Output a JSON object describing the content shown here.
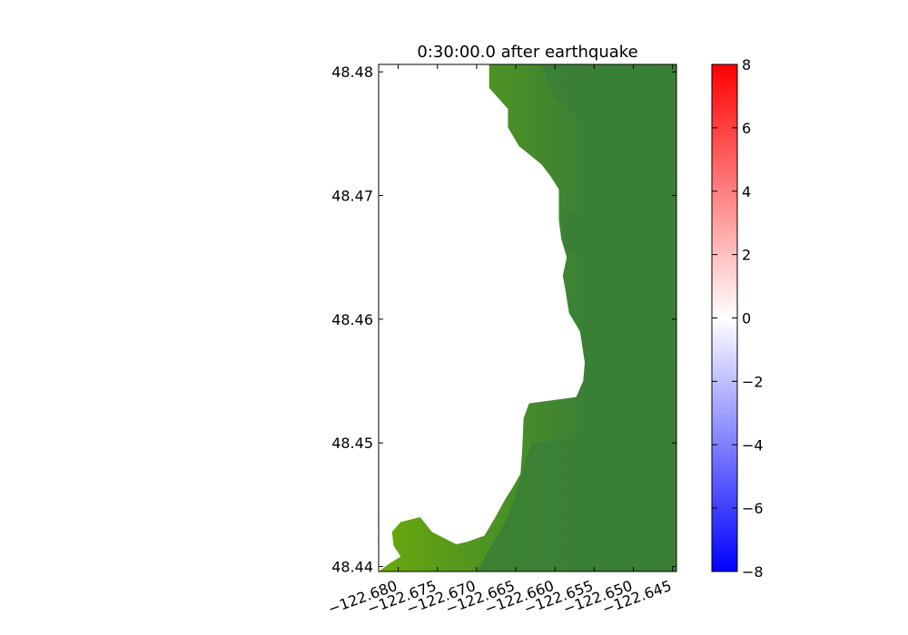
{
  "chart_data": {
    "type": "heatmap",
    "title": "0:30:00.0 after earthquake",
    "xlabel": "",
    "ylabel": "",
    "xlim": [
      -122.6825,
      -122.6445
    ],
    "ylim": [
      48.4396,
      48.4806
    ],
    "x_ticks": [
      -122.68,
      -122.675,
      -122.67,
      -122.665,
      -122.66,
      -122.655,
      -122.65,
      -122.645
    ],
    "x_tick_labels": [
      "−122.680",
      "−122.675",
      "−122.670",
      "−122.665",
      "−122.660",
      "−122.655",
      "−122.650",
      "−122.645"
    ],
    "y_ticks": [
      48.44,
      48.45,
      48.46,
      48.47,
      48.48
    ],
    "y_tick_labels": [
      "48.44",
      "48.45",
      "48.46",
      "48.47",
      "48.48"
    ],
    "land_color": "#6aa80a",
    "deep_water_color": "#3a7f36",
    "land_lon_at_lat": [
      {
        "lat": 48.4806,
        "lon": -122.6684
      },
      {
        "lat": 48.4787,
        "lon": -122.6684
      },
      {
        "lat": 48.477,
        "lon": -122.666
      },
      {
        "lat": 48.4755,
        "lon": -122.666
      },
      {
        "lat": 48.474,
        "lon": -122.6646
      },
      {
        "lat": 48.4725,
        "lon": -122.6617
      },
      {
        "lat": 48.4715,
        "lon": -122.6605
      },
      {
        "lat": 48.4705,
        "lon": -122.6595
      },
      {
        "lat": 48.468,
        "lon": -122.6595
      },
      {
        "lat": 48.4665,
        "lon": -122.6592
      },
      {
        "lat": 48.465,
        "lon": -122.6585
      },
      {
        "lat": 48.4635,
        "lon": -122.659
      },
      {
        "lat": 48.4625,
        "lon": -122.6587
      },
      {
        "lat": 48.4605,
        "lon": -122.6582
      },
      {
        "lat": 48.459,
        "lon": -122.6568
      },
      {
        "lat": 48.4565,
        "lon": -122.6562
      },
      {
        "lat": 48.455,
        "lon": -122.6564
      },
      {
        "lat": 48.4537,
        "lon": -122.6573
      },
      {
        "lat": 48.4532,
        "lon": -122.6633
      },
      {
        "lat": 48.452,
        "lon": -122.664
      },
      {
        "lat": 48.4493,
        "lon": -122.6642
      },
      {
        "lat": 48.4475,
        "lon": -122.6644
      },
      {
        "lat": 48.4465,
        "lon": -122.6653
      },
      {
        "lat": 48.4455,
        "lon": -122.6663
      },
      {
        "lat": 48.444,
        "lon": -122.6676
      },
      {
        "lat": 48.4425,
        "lon": -122.669
      },
      {
        "lat": 48.442,
        "lon": -122.6712
      },
      {
        "lat": 48.4418,
        "lon": -122.6726
      },
      {
        "lat": 48.4428,
        "lon": -122.6757
      },
      {
        "lat": 48.444,
        "lon": -122.6772
      },
      {
        "lat": 48.4436,
        "lon": -122.6797
      },
      {
        "lat": 48.4428,
        "lon": -122.6808
      },
      {
        "lat": 48.4417,
        "lon": -122.6806
      },
      {
        "lat": 48.4408,
        "lon": -122.6797
      },
      {
        "lat": 48.4403,
        "lon": -122.681
      },
      {
        "lat": 48.4396,
        "lon": -122.6825
      }
    ],
    "colorbar": {
      "min": -8,
      "max": 8,
      "ticks": [
        -8,
        -6,
        -4,
        -2,
        0,
        2,
        4,
        6,
        8
      ],
      "tick_labels": [
        "−8",
        "−6",
        "−4",
        "−2",
        "0",
        "2",
        "4",
        "6",
        "8"
      ],
      "colors": {
        "low": "#0000ff",
        "mid": "#ffffff",
        "high": "#ff0000"
      }
    }
  }
}
